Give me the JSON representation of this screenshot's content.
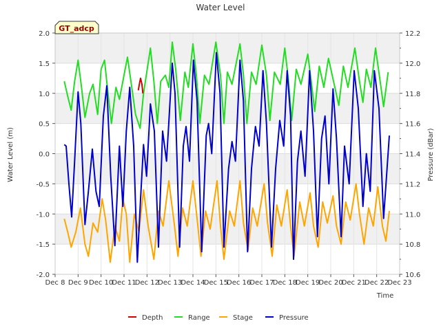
{
  "chart_data": {
    "type": "line",
    "title": "Water Level",
    "site_label": "GT_adcp",
    "xlabel": "Time",
    "ylabel_left": "Water Level (m)",
    "ylabel_right": "Pressure (dBar)",
    "ylim_left": [
      -2.0,
      2.0
    ],
    "ylim_right": [
      10.6,
      12.2
    ],
    "xlim": [
      8,
      23
    ],
    "x_tick_values": [
      8,
      9,
      10,
      11,
      12,
      13,
      14,
      15,
      16,
      17,
      18,
      19,
      20,
      21,
      22,
      23
    ],
    "x_tick_labels": [
      "Dec 8",
      "Dec 9",
      "Dec 10",
      "Dec 11",
      "Dec 12",
      "Dec 13",
      "Dec 14",
      "Dec 15",
      "Dec 16",
      "Dec 17",
      "Dec 18",
      "Dec 19",
      "Dec 20",
      "Dec 21",
      "Dec 22",
      "Dec 23"
    ],
    "y_tick_labels_left": [
      "2.0",
      "1.5",
      "1.0",
      "0.5",
      "0.0",
      "-0.5",
      "-1.0",
      "-1.5",
      "-2.0"
    ],
    "y_tick_values_left": [
      2.0,
      1.5,
      1.0,
      0.5,
      0.0,
      -0.5,
      -1.0,
      -1.5,
      -2.0
    ],
    "y_tick_labels_right": [
      "12.2",
      "12.0",
      "11.8",
      "11.6",
      "11.4",
      "11.2",
      "11.0",
      "10.8",
      "10.6"
    ],
    "y_tick_values_right": [
      12.2,
      12.0,
      11.8,
      11.6,
      11.4,
      11.2,
      11.0,
      10.8,
      10.6
    ],
    "grid": true,
    "legend_position": "bottom",
    "series": [
      {
        "name": "Depth",
        "axis": "left",
        "color": "#cc0000",
        "points": [
          [
            11.62,
            1.05
          ],
          [
            11.68,
            1.18
          ],
          [
            11.72,
            1.25
          ],
          [
            11.78,
            1.15
          ],
          [
            11.82,
            1.0
          ]
        ]
      },
      {
        "name": "Range",
        "axis": "left",
        "color": "#22dd22",
        "points": [
          [
            8.4,
            1.2
          ],
          [
            8.55,
            0.95
          ],
          [
            8.7,
            0.72
          ],
          [
            8.85,
            1.2
          ],
          [
            9.0,
            1.55
          ],
          [
            9.15,
            1.1
          ],
          [
            9.3,
            0.6
          ],
          [
            9.5,
            1.0
          ],
          [
            9.65,
            1.15
          ],
          [
            9.85,
            0.65
          ],
          [
            10.0,
            1.4
          ],
          [
            10.15,
            1.55
          ],
          [
            10.3,
            1.0
          ],
          [
            10.45,
            0.5
          ],
          [
            10.65,
            1.1
          ],
          [
            10.8,
            0.9
          ],
          [
            10.95,
            1.2
          ],
          [
            11.15,
            1.6
          ],
          [
            11.3,
            1.2
          ],
          [
            11.5,
            0.65
          ],
          [
            11.7,
            0.42
          ],
          [
            11.85,
            1.0
          ],
          [
            12.05,
            1.5
          ],
          [
            12.15,
            1.75
          ],
          [
            12.3,
            1.2
          ],
          [
            12.45,
            0.5
          ],
          [
            12.6,
            1.2
          ],
          [
            12.8,
            1.3
          ],
          [
            12.95,
            1.1
          ],
          [
            13.1,
            1.85
          ],
          [
            13.25,
            1.4
          ],
          [
            13.45,
            0.55
          ],
          [
            13.65,
            1.35
          ],
          [
            13.8,
            1.1
          ],
          [
            14.0,
            1.82
          ],
          [
            14.15,
            1.3
          ],
          [
            14.3,
            0.5
          ],
          [
            14.5,
            1.3
          ],
          [
            14.7,
            1.15
          ],
          [
            15.0,
            1.85
          ],
          [
            15.2,
            1.3
          ],
          [
            15.35,
            0.5
          ],
          [
            15.5,
            1.35
          ],
          [
            15.7,
            1.15
          ],
          [
            16.05,
            1.82
          ],
          [
            16.2,
            1.3
          ],
          [
            16.35,
            0.5
          ],
          [
            16.55,
            1.35
          ],
          [
            16.75,
            1.15
          ],
          [
            17.0,
            1.8
          ],
          [
            17.2,
            1.3
          ],
          [
            17.35,
            0.55
          ],
          [
            17.55,
            1.35
          ],
          [
            17.8,
            1.15
          ],
          [
            18.0,
            1.75
          ],
          [
            18.15,
            1.25
          ],
          [
            18.3,
            0.55
          ],
          [
            18.5,
            1.4
          ],
          [
            18.7,
            1.15
          ],
          [
            19.0,
            1.65
          ],
          [
            19.15,
            1.2
          ],
          [
            19.3,
            0.7
          ],
          [
            19.5,
            1.45
          ],
          [
            19.7,
            1.1
          ],
          [
            19.9,
            1.58
          ],
          [
            20.15,
            1.15
          ],
          [
            20.35,
            0.8
          ],
          [
            20.55,
            1.45
          ],
          [
            20.75,
            1.1
          ],
          [
            21.05,
            1.75
          ],
          [
            21.25,
            1.2
          ],
          [
            21.4,
            0.85
          ],
          [
            21.55,
            1.4
          ],
          [
            21.75,
            1.1
          ],
          [
            21.95,
            1.75
          ],
          [
            22.15,
            1.2
          ],
          [
            22.3,
            0.78
          ],
          [
            22.5,
            1.35
          ]
        ]
      },
      {
        "name": "Stage",
        "axis": "left",
        "color": "#ffa500",
        "points": [
          [
            8.4,
            -1.08
          ],
          [
            8.55,
            -1.3
          ],
          [
            8.7,
            -1.55
          ],
          [
            8.9,
            -1.3
          ],
          [
            9.1,
            -0.9
          ],
          [
            9.3,
            -1.5
          ],
          [
            9.45,
            -1.7
          ],
          [
            9.65,
            -1.15
          ],
          [
            9.85,
            -1.3
          ],
          [
            10.05,
            -0.75
          ],
          [
            10.2,
            -1.1
          ],
          [
            10.4,
            -1.8
          ],
          [
            10.6,
            -1.2
          ],
          [
            10.8,
            -1.45
          ],
          [
            10.95,
            -0.75
          ],
          [
            11.1,
            -1.0
          ],
          [
            11.25,
            -1.8
          ],
          [
            11.45,
            -1.0
          ],
          [
            11.65,
            -1.3
          ],
          [
            11.85,
            -0.6
          ],
          [
            12.05,
            -1.2
          ],
          [
            12.3,
            -1.75
          ],
          [
            12.5,
            -0.95
          ],
          [
            12.7,
            -1.2
          ],
          [
            12.95,
            -0.45
          ],
          [
            13.2,
            -1.2
          ],
          [
            13.35,
            -1.7
          ],
          [
            13.55,
            -0.9
          ],
          [
            13.75,
            -1.2
          ],
          [
            14.0,
            -0.45
          ],
          [
            14.2,
            -1.15
          ],
          [
            14.35,
            -1.7
          ],
          [
            14.55,
            -0.95
          ],
          [
            14.75,
            -1.25
          ],
          [
            15.05,
            -0.45
          ],
          [
            15.2,
            -1.2
          ],
          [
            15.35,
            -1.75
          ],
          [
            15.6,
            -0.95
          ],
          [
            15.8,
            -1.2
          ],
          [
            16.05,
            -0.45
          ],
          [
            16.2,
            -1.15
          ],
          [
            16.4,
            -1.6
          ],
          [
            16.6,
            -0.9
          ],
          [
            16.8,
            -1.2
          ],
          [
            17.1,
            -0.5
          ],
          [
            17.25,
            -1.15
          ],
          [
            17.45,
            -1.7
          ],
          [
            17.65,
            -0.85
          ],
          [
            17.85,
            -1.2
          ],
          [
            18.1,
            -0.6
          ],
          [
            18.25,
            -1.2
          ],
          [
            18.4,
            -1.7
          ],
          [
            18.65,
            -0.8
          ],
          [
            18.85,
            -1.2
          ],
          [
            19.1,
            -0.65
          ],
          [
            19.25,
            -1.2
          ],
          [
            19.45,
            -1.55
          ],
          [
            19.65,
            -0.8
          ],
          [
            19.85,
            -1.15
          ],
          [
            20.1,
            -0.7
          ],
          [
            20.25,
            -1.2
          ],
          [
            20.45,
            -1.5
          ],
          [
            20.65,
            -0.8
          ],
          [
            20.85,
            -1.1
          ],
          [
            21.1,
            -0.5
          ],
          [
            21.25,
            -1.0
          ],
          [
            21.45,
            -1.5
          ],
          [
            21.65,
            -0.9
          ],
          [
            21.85,
            -1.2
          ],
          [
            22.05,
            -0.55
          ],
          [
            22.25,
            -1.2
          ],
          [
            22.4,
            -1.45
          ],
          [
            22.55,
            -0.95
          ]
        ]
      },
      {
        "name": "Pressure",
        "axis": "right",
        "color": "#0000cc",
        "points": [
          [
            8.4,
            11.46
          ],
          [
            8.48,
            11.45
          ],
          [
            8.6,
            11.2
          ],
          [
            8.72,
            10.98
          ],
          [
            8.85,
            11.35
          ],
          [
            9.0,
            11.81
          ],
          [
            9.12,
            11.6
          ],
          [
            9.3,
            10.93
          ],
          [
            9.45,
            11.15
          ],
          [
            9.62,
            11.43
          ],
          [
            9.78,
            11.15
          ],
          [
            9.92,
            11.05
          ],
          [
            10.1,
            11.65
          ],
          [
            10.25,
            11.85
          ],
          [
            10.42,
            11.25
          ],
          [
            10.6,
            10.79
          ],
          [
            10.8,
            11.45
          ],
          [
            10.95,
            11.05
          ],
          [
            11.1,
            11.55
          ],
          [
            11.25,
            11.84
          ],
          [
            11.42,
            11.45
          ],
          [
            11.58,
            10.68
          ],
          [
            11.72,
            11.1
          ],
          [
            11.85,
            11.46
          ],
          [
            11.98,
            11.25
          ],
          [
            12.15,
            11.73
          ],
          [
            12.32,
            11.55
          ],
          [
            12.5,
            10.78
          ],
          [
            12.68,
            11.55
          ],
          [
            12.85,
            11.35
          ],
          [
            13.1,
            12.0
          ],
          [
            13.22,
            11.8
          ],
          [
            13.42,
            10.78
          ],
          [
            13.58,
            11.45
          ],
          [
            13.7,
            11.58
          ],
          [
            13.85,
            11.35
          ],
          [
            14.02,
            12.02
          ],
          [
            14.18,
            11.75
          ],
          [
            14.38,
            10.75
          ],
          [
            14.58,
            11.52
          ],
          [
            14.68,
            11.6
          ],
          [
            14.82,
            11.4
          ],
          [
            15.02,
            12.07
          ],
          [
            15.18,
            11.8
          ],
          [
            15.35,
            10.78
          ],
          [
            15.55,
            11.3
          ],
          [
            15.7,
            11.48
          ],
          [
            15.85,
            11.35
          ],
          [
            16.05,
            12.02
          ],
          [
            16.2,
            11.75
          ],
          [
            16.38,
            10.75
          ],
          [
            16.55,
            11.3
          ],
          [
            16.72,
            11.58
          ],
          [
            16.88,
            11.45
          ],
          [
            17.05,
            11.95
          ],
          [
            17.2,
            11.6
          ],
          [
            17.42,
            10.78
          ],
          [
            17.6,
            11.3
          ],
          [
            17.78,
            11.62
          ],
          [
            17.95,
            11.45
          ],
          [
            18.1,
            11.95
          ],
          [
            18.25,
            11.65
          ],
          [
            18.38,
            10.7
          ],
          [
            18.55,
            11.35
          ],
          [
            18.7,
            11.55
          ],
          [
            18.88,
            11.25
          ],
          [
            19.08,
            11.95
          ],
          [
            19.25,
            11.55
          ],
          [
            19.42,
            10.85
          ],
          [
            19.6,
            11.5
          ],
          [
            19.75,
            11.65
          ],
          [
            19.92,
            11.2
          ],
          [
            20.1,
            11.83
          ],
          [
            20.25,
            11.5
          ],
          [
            20.45,
            10.85
          ],
          [
            20.6,
            11.45
          ],
          [
            20.8,
            11.2
          ],
          [
            21.02,
            11.95
          ],
          [
            21.2,
            11.7
          ],
          [
            21.4,
            11.05
          ],
          [
            21.55,
            11.4
          ],
          [
            21.72,
            11.15
          ],
          [
            21.9,
            11.95
          ],
          [
            22.1,
            11.7
          ],
          [
            22.3,
            10.97
          ],
          [
            22.45,
            11.3
          ],
          [
            22.55,
            11.52
          ]
        ]
      }
    ]
  }
}
